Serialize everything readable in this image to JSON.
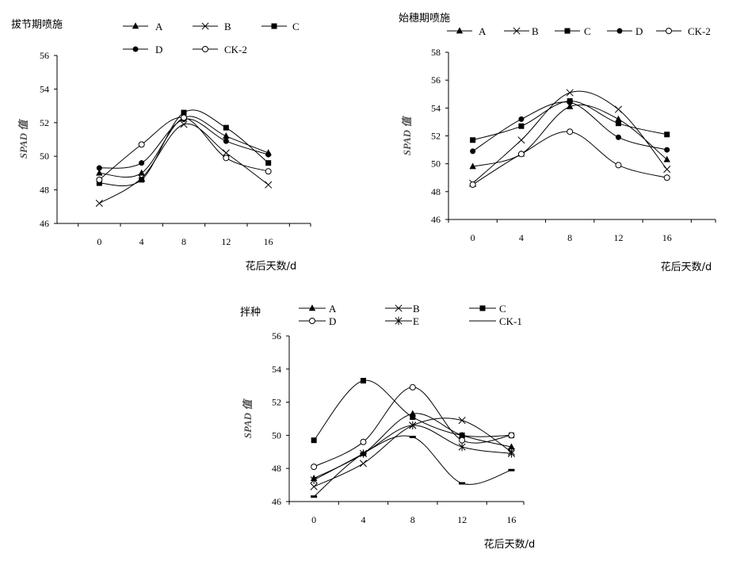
{
  "chart_data": [
    {
      "type": "line",
      "title": "拔节期喷施",
      "xlabel": "花后天数/d",
      "ylabel": "SPAD 值",
      "x": [
        0,
        4,
        8,
        12,
        16
      ],
      "xlim": [
        -4,
        20
      ],
      "ylim": [
        46,
        56
      ],
      "yticks": [
        46,
        48,
        50,
        52,
        54,
        56
      ],
      "grid": false,
      "legend": "top",
      "series": [
        {
          "name": "A",
          "marker": "triangle",
          "values": [
            49.0,
            49.0,
            52.3,
            51.2,
            50.2
          ]
        },
        {
          "name": "B",
          "marker": "cross",
          "values": [
            47.2,
            48.7,
            51.9,
            50.2,
            48.3
          ]
        },
        {
          "name": "C",
          "marker": "square",
          "values": [
            48.4,
            48.6,
            52.6,
            51.7,
            49.6
          ]
        },
        {
          "name": "D",
          "marker": "dot",
          "values": [
            49.3,
            49.6,
            52.2,
            50.9,
            50.1
          ]
        },
        {
          "name": "CK-2",
          "marker": "circle",
          "values": [
            48.6,
            50.7,
            52.3,
            49.9,
            49.1
          ]
        }
      ]
    },
    {
      "type": "line",
      "title": "始穗期喷施",
      "xlabel": "花后天数/d",
      "ylabel": "SPAD 值",
      "x": [
        0,
        4,
        8,
        12,
        16
      ],
      "xlim": [
        -2,
        20
      ],
      "ylim": [
        46,
        58
      ],
      "yticks": [
        46,
        48,
        50,
        52,
        54,
        56,
        58
      ],
      "grid": false,
      "legend": "top",
      "series": [
        {
          "name": "A",
          "marker": "triangle",
          "values": [
            49.8,
            50.7,
            54.1,
            53.2,
            50.3
          ]
        },
        {
          "name": "B",
          "marker": "cross",
          "values": [
            48.6,
            51.7,
            55.1,
            53.9,
            49.6
          ]
        },
        {
          "name": "C",
          "marker": "square",
          "values": [
            51.7,
            52.7,
            54.5,
            52.9,
            52.1
          ]
        },
        {
          "name": "D",
          "marker": "dot",
          "values": [
            50.9,
            53.2,
            54.4,
            51.9,
            51.0
          ]
        },
        {
          "name": "CK-2",
          "marker": "circle",
          "values": [
            48.5,
            50.7,
            52.3,
            49.9,
            49.0
          ]
        }
      ]
    },
    {
      "type": "line",
      "title": "拌种",
      "xlabel": "花后天数/d",
      "ylabel": "SPAD 值",
      "x": [
        0,
        4,
        8,
        12,
        16
      ],
      "xlim": [
        -2,
        17
      ],
      "ylim": [
        46,
        56
      ],
      "yticks": [
        46,
        48,
        50,
        52,
        54,
        56
      ],
      "grid": false,
      "legend": "top",
      "series": [
        {
          "name": "A",
          "marker": "triangle",
          "values": [
            47.4,
            48.9,
            51.3,
            50.0,
            49.3
          ]
        },
        {
          "name": "B",
          "marker": "cross",
          "values": [
            46.9,
            48.3,
            50.6,
            50.9,
            49.0
          ]
        },
        {
          "name": "C",
          "marker": "square",
          "values": [
            49.7,
            53.3,
            51.1,
            50.0,
            50.0
          ]
        },
        {
          "name": "D",
          "marker": "circle",
          "values": [
            48.1,
            49.6,
            52.9,
            49.7,
            50.0
          ]
        },
        {
          "name": "E",
          "marker": "asterisk",
          "values": [
            47.3,
            48.9,
            50.6,
            49.3,
            48.9
          ]
        },
        {
          "name": "CK-1",
          "marker": "dash",
          "values": [
            46.3,
            48.9,
            49.9,
            47.1,
            47.9
          ]
        }
      ]
    }
  ]
}
